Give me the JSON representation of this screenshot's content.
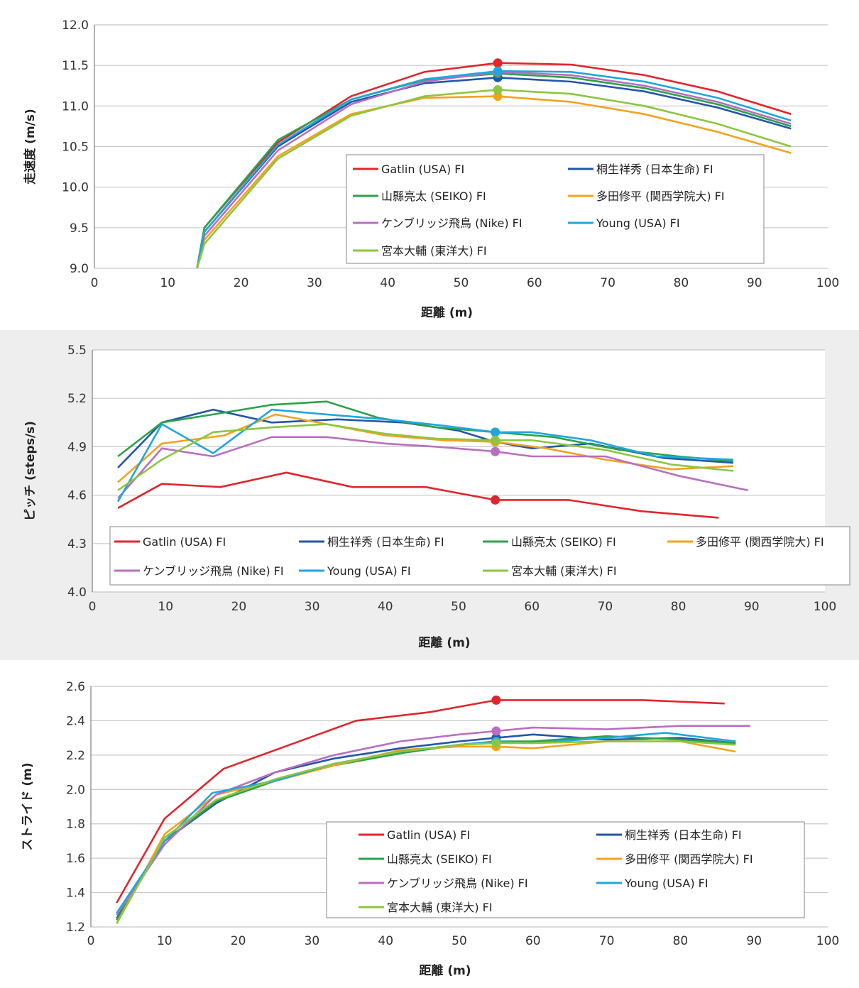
{
  "charts": [
    {
      "type": "line",
      "ylabel": "走速度 (m/s)",
      "xlabel": "距離 (m)",
      "xlim": [
        0,
        100
      ],
      "ylim": [
        9.0,
        12.0
      ],
      "xticks": [
        "0",
        "10",
        "20",
        "30",
        "40",
        "50",
        "60",
        "70",
        "80",
        "90",
        "100"
      ],
      "yticks": [
        "9.0",
        "9.5",
        "10.0",
        "10.5",
        "11.0",
        "11.5",
        "12.0"
      ],
      "grid": true,
      "legend_placement": "center-right",
      "legend_columns": 2,
      "highlight_x": 55,
      "series": [
        {
          "name": "Gatlin (USA) FI",
          "color": "#e0262d",
          "x": [
            14,
            15,
            25,
            35,
            45,
            55,
            65,
            75,
            85,
            95
          ],
          "y": [
            9.0,
            9.5,
            10.55,
            11.12,
            11.42,
            11.53,
            11.51,
            11.38,
            11.18,
            10.9
          ]
        },
        {
          "name": "桐生祥秀 (日本生命) FI",
          "color": "#2456a8",
          "x": [
            14,
            15,
            25,
            35,
            45,
            55,
            65,
            75,
            85,
            95
          ],
          "y": [
            9.0,
            9.45,
            10.5,
            11.05,
            11.28,
            11.35,
            11.3,
            11.18,
            10.98,
            10.72
          ]
        },
        {
          "name": "山縣亮太 (SEIKO) FI",
          "color": "#2ea14b",
          "x": [
            14,
            15,
            25,
            35,
            45,
            55,
            65,
            75,
            85,
            95
          ],
          "y": [
            9.0,
            9.5,
            10.58,
            11.08,
            11.32,
            11.4,
            11.35,
            11.22,
            11.02,
            10.75
          ]
        },
        {
          "name": "多田修平 (関西学院大) FI",
          "color": "#f4a21e",
          "x": [
            14,
            15,
            25,
            35,
            45,
            55,
            65,
            75,
            85,
            95
          ],
          "y": [
            9.0,
            9.35,
            10.38,
            10.9,
            11.1,
            11.12,
            11.05,
            10.9,
            10.68,
            10.42
          ]
        },
        {
          "name": "ケンブリッジ飛鳥 (Nike) FI",
          "color": "#b86fc0",
          "x": [
            14,
            15,
            25,
            35,
            45,
            55,
            65,
            75,
            85,
            95
          ],
          "y": [
            9.0,
            9.4,
            10.45,
            11.02,
            11.3,
            11.42,
            11.38,
            11.25,
            11.05,
            10.78
          ]
        },
        {
          "name": "Young (USA) FI",
          "color": "#1ea7de",
          "x": [
            14,
            15,
            25,
            35,
            45,
            55,
            65,
            75,
            85,
            95
          ],
          "y": [
            9.0,
            9.45,
            10.52,
            11.08,
            11.33,
            11.43,
            11.42,
            11.3,
            11.1,
            10.82
          ]
        },
        {
          "name": "宮本大輔 (東洋大) FI",
          "color": "#8cc63f",
          "x": [
            14,
            15,
            25,
            35,
            45,
            55,
            65,
            75,
            85,
            95
          ],
          "y": [
            9.0,
            9.3,
            10.35,
            10.88,
            11.12,
            11.2,
            11.15,
            11.0,
            10.78,
            10.5
          ]
        }
      ]
    },
    {
      "type": "line",
      "ylabel": "ピッチ (steps/s)",
      "xlabel": "距離 (m)",
      "xlim": [
        0,
        100
      ],
      "ylim": [
        4.0,
        5.5
      ],
      "xticks": [
        "0",
        "10",
        "20",
        "30",
        "40",
        "50",
        "60",
        "70",
        "80",
        "90",
        "100"
      ],
      "yticks": [
        "4.0",
        "4.3",
        "4.6",
        "4.9",
        "5.2",
        "5.5"
      ],
      "grid": true,
      "legend_placement": "bottom",
      "legend_columns": 4,
      "highlight_x": 55,
      "series": [
        {
          "name": "Gatlin (USA) FI",
          "color": "#e0262d",
          "x": [
            3.5,
            9.5,
            17.5,
            26.5,
            35.5,
            45.5,
            55,
            65,
            75,
            85.5
          ],
          "y": [
            4.52,
            4.67,
            4.65,
            4.74,
            4.65,
            4.65,
            4.57,
            4.57,
            4.5,
            4.46
          ]
        },
        {
          "name": "桐生祥秀 (日本生命) FI",
          "color": "#2456a8",
          "x": [
            3.5,
            9.5,
            16.5,
            24.5,
            33.5,
            42.5,
            50,
            55,
            60,
            68,
            78,
            87.5
          ],
          "y": [
            4.77,
            5.05,
            5.13,
            5.05,
            5.07,
            5.05,
            5.0,
            4.93,
            4.89,
            4.92,
            4.83,
            4.8
          ]
        },
        {
          "name": "山縣亮太 (SEIKO) FI",
          "color": "#2ea14b",
          "x": [
            3.5,
            9.5,
            16.5,
            24.5,
            32,
            39,
            47,
            55,
            63,
            72,
            80,
            87.5
          ],
          "y": [
            4.84,
            5.05,
            5.1,
            5.16,
            5.18,
            5.08,
            5.02,
            4.99,
            4.96,
            4.88,
            4.84,
            4.81
          ]
        },
        {
          "name": "多田修平 (関西学院大) FI",
          "color": "#f4a21e",
          "x": [
            3.5,
            9.5,
            18,
            25,
            32,
            40,
            48,
            55,
            62,
            70,
            79,
            87.5
          ],
          "y": [
            4.68,
            4.92,
            4.97,
            5.1,
            5.04,
            4.97,
            4.94,
            4.93,
            4.89,
            4.82,
            4.76,
            4.78
          ]
        },
        {
          "name": "ケンブリッジ飛鳥 (Nike) FI",
          "color": "#b86fc0",
          "x": [
            3.5,
            9.5,
            16.5,
            24.5,
            32,
            40,
            47,
            55,
            60,
            70,
            80,
            89.5
          ],
          "y": [
            4.58,
            4.89,
            4.84,
            4.96,
            4.96,
            4.92,
            4.9,
            4.87,
            4.84,
            4.84,
            4.72,
            4.63
          ]
        },
        {
          "name": "Young (USA) FI",
          "color": "#1ea7de",
          "x": [
            3.5,
            9.5,
            16.5,
            24.5,
            32,
            40,
            48,
            55,
            60,
            68,
            77,
            87.5
          ],
          "y": [
            4.56,
            5.04,
            4.86,
            5.13,
            5.1,
            5.07,
            5.03,
            4.99,
            4.99,
            4.94,
            4.84,
            4.82
          ]
        },
        {
          "name": "宮本大輔 (東洋大) FI",
          "color": "#8cc63f",
          "x": [
            3.5,
            9.5,
            16.5,
            24.5,
            32,
            40,
            47,
            55,
            60,
            70,
            79,
            87.5
          ],
          "y": [
            4.63,
            4.82,
            4.99,
            5.02,
            5.04,
            4.98,
            4.95,
            4.94,
            4.94,
            4.88,
            4.79,
            4.75
          ]
        }
      ]
    },
    {
      "type": "line",
      "ylabel": "ストライド (m)",
      "xlabel": "距離 (m)",
      "xlim": [
        0,
        100
      ],
      "ylim": [
        1.2,
        2.6
      ],
      "xticks": [
        "0",
        "10",
        "20",
        "30",
        "40",
        "50",
        "60",
        "70",
        "80",
        "90",
        "100"
      ],
      "yticks": [
        "1.2",
        "1.4",
        "1.6",
        "1.8",
        "2.0",
        "2.2",
        "2.4",
        "2.6"
      ],
      "grid": true,
      "legend_placement": "bottom-center",
      "legend_columns": 2,
      "highlight_x": 55,
      "series": [
        {
          "name": "Gatlin (USA) FI",
          "color": "#e0262d",
          "x": [
            3.5,
            10,
            18,
            27,
            36,
            46,
            55,
            65,
            75,
            86
          ],
          "y": [
            1.34,
            1.83,
            2.12,
            2.26,
            2.4,
            2.45,
            2.52,
            2.52,
            2.52,
            2.5
          ]
        },
        {
          "name": "桐生祥秀 (日本生命) FI",
          "color": "#2456a8",
          "x": [
            3.5,
            10,
            17,
            25,
            33,
            42,
            50,
            55,
            60,
            70,
            80,
            87.5
          ],
          "y": [
            1.25,
            1.7,
            1.92,
            2.1,
            2.18,
            2.24,
            2.28,
            2.3,
            2.32,
            2.29,
            2.3,
            2.27
          ]
        },
        {
          "name": "山縣亮太 (SEIKO) FI",
          "color": "#2ea14b",
          "x": [
            3.5,
            10,
            17,
            25,
            33,
            42,
            50,
            55,
            60,
            70,
            80,
            87.5
          ],
          "y": [
            1.24,
            1.7,
            1.93,
            2.05,
            2.14,
            2.21,
            2.26,
            2.28,
            2.28,
            2.31,
            2.29,
            2.27
          ]
        },
        {
          "name": "多田修平 (関西学院大) FI",
          "color": "#f4a21e",
          "x": [
            3.5,
            10,
            17,
            25,
            33,
            42,
            50,
            55,
            60,
            70,
            80,
            87.5
          ],
          "y": [
            1.22,
            1.74,
            1.97,
            2.05,
            2.14,
            2.23,
            2.25,
            2.25,
            2.24,
            2.28,
            2.28,
            2.22
          ]
        },
        {
          "name": "ケンブリッジ飛鳥 (Nike) FI",
          "color": "#b86fc0",
          "x": [
            3.5,
            10,
            17,
            25,
            33,
            42,
            50,
            55,
            60,
            70,
            80,
            89.5
          ],
          "y": [
            1.27,
            1.68,
            1.97,
            2.1,
            2.2,
            2.28,
            2.32,
            2.34,
            2.36,
            2.35,
            2.37,
            2.37
          ]
        },
        {
          "name": "Young (USA) FI",
          "color": "#1ea7de",
          "x": [
            3.5,
            10,
            16.5,
            25,
            33,
            42,
            50,
            55,
            60,
            70,
            78,
            87.5
          ],
          "y": [
            1.28,
            1.7,
            1.98,
            2.05,
            2.15,
            2.22,
            2.26,
            2.28,
            2.27,
            2.3,
            2.33,
            2.28
          ]
        },
        {
          "name": "宮本大輔 (東洋大) FI",
          "color": "#8cc63f",
          "x": [
            3.5,
            10,
            17,
            25,
            33,
            42,
            50,
            55,
            60,
            70,
            80,
            87.5
          ],
          "y": [
            1.22,
            1.72,
            1.94,
            2.06,
            2.15,
            2.22,
            2.26,
            2.27,
            2.27,
            2.28,
            2.28,
            2.26
          ]
        }
      ]
    }
  ]
}
